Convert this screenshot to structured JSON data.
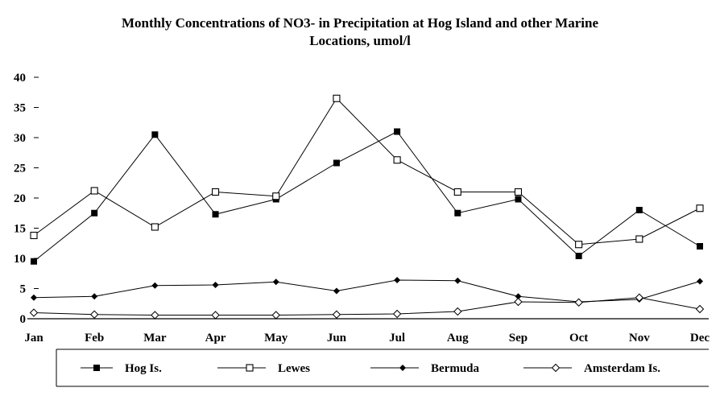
{
  "chart_data": {
    "type": "line",
    "title": "Monthly Concentrations of NO3- in Precipitation at Hog Island and other Marine",
    "subtitle": "Locations, umol/l",
    "xlabel": "",
    "ylabel": "",
    "ylim": [
      0,
      40
    ],
    "y_ticks": [
      "0",
      "5",
      "10",
      "15",
      "20",
      "25",
      "30",
      "35",
      "40"
    ],
    "categories": [
      "Jan",
      "Feb",
      "Mar",
      "Apr",
      "May",
      "Jun",
      "Jul",
      "Aug",
      "Sep",
      "Oct",
      "Nov",
      "Dec"
    ],
    "grid": false,
    "legend_position": "bottom",
    "series": [
      {
        "name": "Hog Is.",
        "marker": "filled-square",
        "color": "#000000",
        "values": [
          9.5,
          17.5,
          30.5,
          17.3,
          19.8,
          25.8,
          31.0,
          17.5,
          19.8,
          10.4,
          18.0,
          12.0
        ]
      },
      {
        "name": "Lewes",
        "marker": "open-square",
        "color": "#000000",
        "values": [
          13.8,
          21.2,
          15.2,
          21.0,
          20.3,
          36.5,
          26.3,
          21.0,
          21.0,
          12.3,
          13.2,
          18.3
        ]
      },
      {
        "name": "Bermuda",
        "marker": "filled-diamond",
        "color": "#000000",
        "values": [
          3.5,
          3.7,
          5.5,
          5.6,
          6.1,
          4.6,
          6.4,
          6.3,
          3.7,
          2.8,
          3.2,
          6.2
        ]
      },
      {
        "name": "Amsterdam Is.",
        "marker": "open-diamond",
        "color": "#000000",
        "values": [
          1.0,
          0.7,
          0.6,
          0.6,
          0.6,
          0.7,
          0.8,
          1.2,
          2.8,
          2.7,
          3.5,
          1.6
        ]
      }
    ]
  }
}
